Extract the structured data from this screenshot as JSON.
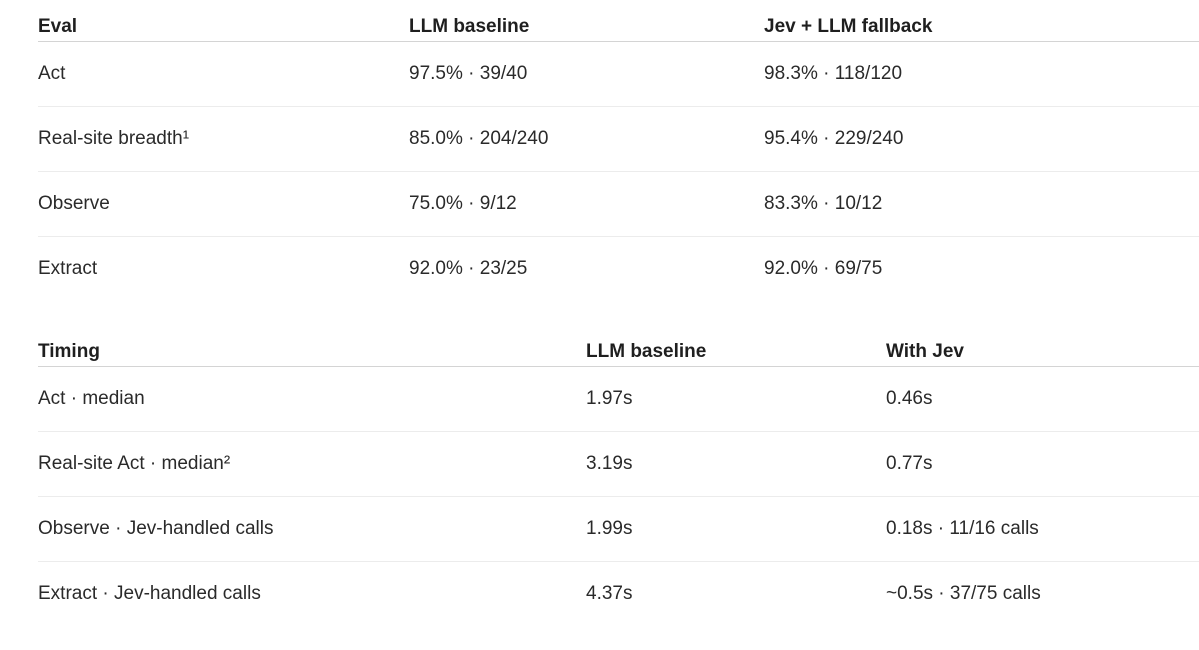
{
  "eval_table": {
    "headers": [
      "Eval",
      "LLM baseline",
      "Jev + LLM fallback"
    ],
    "rows": [
      [
        "Act",
        "97.5% · 39/40",
        "98.3% · 118/120"
      ],
      [
        "Real-site breadth¹",
        "85.0% · 204/240",
        "95.4% · 229/240"
      ],
      [
        "Observe",
        "75.0% · 9/12",
        "83.3% · 10/12"
      ],
      [
        "Extract",
        "92.0% · 23/25",
        "92.0% · 69/75"
      ]
    ]
  },
  "timing_table": {
    "headers": [
      "Timing",
      "LLM baseline",
      "With Jev"
    ],
    "rows": [
      [
        "Act · median",
        "1.97s",
        "0.46s"
      ],
      [
        "Real-site Act · median²",
        "3.19s",
        "0.77s"
      ],
      [
        "Observe · Jev-handled calls",
        "1.99s",
        "0.18s · 11/16 calls"
      ],
      [
        "Extract · Jev-handled calls",
        "4.37s",
        "~0.5s · 37/75 calls"
      ]
    ]
  }
}
